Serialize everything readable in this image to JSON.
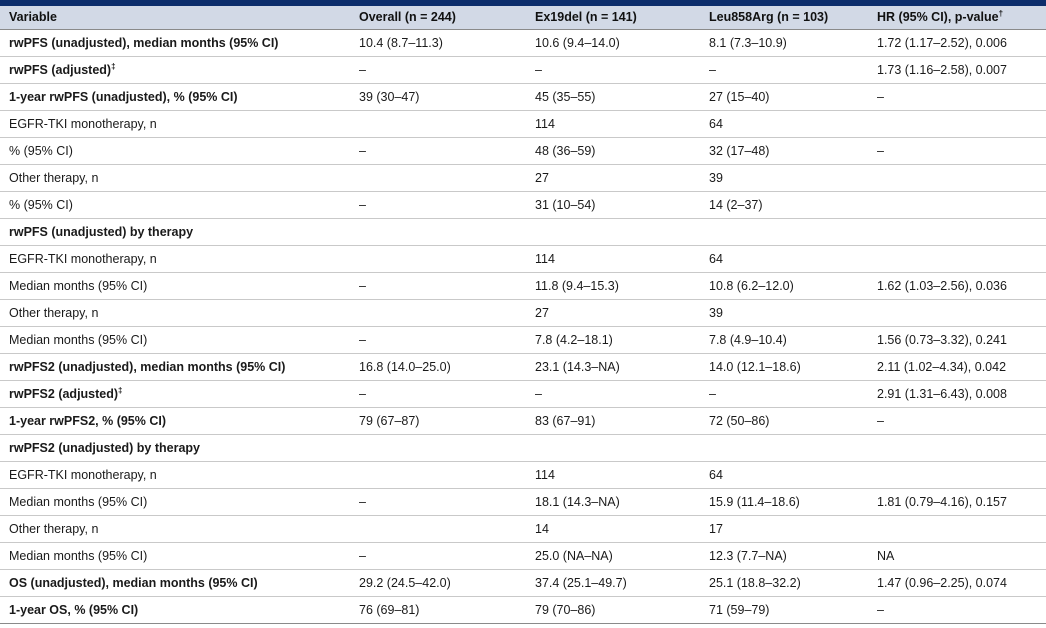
{
  "table": {
    "headers": [
      "Variable",
      "Overall (n = 244)",
      "Ex19del (n = 141)",
      "Leu858Arg (n = 103)",
      "HR (95% CI), p-value"
    ],
    "header_sup": "†",
    "rows": [
      {
        "bold": true,
        "label": "rwPFS (unadjusted), median months (95% CI)",
        "sup": "",
        "cells": [
          "10.4 (8.7–11.3)",
          "10.6 (9.4–14.0)",
          "8.1 (7.3–10.9)",
          "1.72 (1.17–2.52), 0.006"
        ]
      },
      {
        "bold": true,
        "label": "rwPFS (adjusted)",
        "sup": "‡",
        "cells": [
          "–",
          "–",
          "–",
          "1.73 (1.16–2.58), 0.007"
        ]
      },
      {
        "bold": true,
        "label": "1-year rwPFS (unadjusted), % (95% CI)",
        "sup": "",
        "cells": [
          "39 (30–47)",
          "45 (35–55)",
          "27 (15–40)",
          "–"
        ]
      },
      {
        "bold": false,
        "label": "EGFR-TKI monotherapy, n",
        "sup": "",
        "cells": [
          "",
          "114",
          "64",
          ""
        ]
      },
      {
        "bold": false,
        "label": "% (95% CI)",
        "sup": "",
        "cells": [
          "–",
          "48 (36–59)",
          "32 (17–48)",
          "–"
        ]
      },
      {
        "bold": false,
        "label": "Other therapy, n",
        "sup": "",
        "cells": [
          "",
          "27",
          "39",
          ""
        ]
      },
      {
        "bold": false,
        "label": "% (95% CI)",
        "sup": "",
        "cells": [
          "–",
          "31 (10–54)",
          "14 (2–37)",
          ""
        ]
      },
      {
        "bold": true,
        "label": "rwPFS (unadjusted) by therapy",
        "sup": "",
        "cells": [
          "",
          "",
          "",
          ""
        ]
      },
      {
        "bold": false,
        "label": "EGFR-TKI monotherapy, n",
        "sup": "",
        "cells": [
          "",
          "114",
          "64",
          ""
        ]
      },
      {
        "bold": false,
        "label": "Median months (95% CI)",
        "sup": "",
        "cells": [
          "–",
          "11.8 (9.4–15.3)",
          "10.8 (6.2–12.0)",
          "1.62 (1.03–2.56), 0.036"
        ]
      },
      {
        "bold": false,
        "label": "Other therapy, n",
        "sup": "",
        "cells": [
          "",
          "27",
          "39",
          ""
        ]
      },
      {
        "bold": false,
        "label": "Median months (95% CI)",
        "sup": "",
        "cells": [
          "–",
          "7.8 (4.2–18.1)",
          "7.8 (4.9–10.4)",
          "1.56 (0.73–3.32), 0.241"
        ]
      },
      {
        "bold": true,
        "label": "rwPFS2 (unadjusted), median months (95% CI)",
        "sup": "",
        "cells": [
          "16.8 (14.0–25.0)",
          "23.1 (14.3–NA)",
          "14.0 (12.1–18.6)",
          "2.11 (1.02–4.34), 0.042"
        ]
      },
      {
        "bold": true,
        "label": "rwPFS2 (adjusted)",
        "sup": "‡",
        "cells": [
          "–",
          "–",
          "–",
          "2.91 (1.31–6.43), 0.008"
        ]
      },
      {
        "bold": true,
        "label": "1-year rwPFS2, % (95% CI)",
        "sup": "",
        "cells": [
          "79 (67–87)",
          "83 (67–91)",
          "72 (50–86)",
          "–"
        ]
      },
      {
        "bold": true,
        "label": "rwPFS2 (unadjusted) by therapy",
        "sup": "",
        "cells": [
          "",
          "",
          "",
          ""
        ]
      },
      {
        "bold": false,
        "label": "EGFR-TKI monotherapy, n",
        "sup": "",
        "cells": [
          "",
          "114",
          "64",
          ""
        ]
      },
      {
        "bold": false,
        "label": "Median months (95% CI)",
        "sup": "",
        "cells": [
          "–",
          "18.1 (14.3–NA)",
          "15.9 (11.4–18.6)",
          "1.81 (0.79–4.16), 0.157"
        ]
      },
      {
        "bold": false,
        "label": "Other therapy, n",
        "sup": "",
        "cells": [
          "",
          "14",
          "17",
          ""
        ]
      },
      {
        "bold": false,
        "label": "Median months (95% CI)",
        "sup": "",
        "cells": [
          "–",
          "25.0 (NA–NA)",
          "12.3 (7.7–NA)",
          "NA"
        ]
      },
      {
        "bold": true,
        "label": "OS (unadjusted), median months (95% CI)",
        "sup": "",
        "cells": [
          "29.2 (24.5–42.0)",
          "37.4 (25.1–49.7)",
          "25.1 (18.8–32.2)",
          "1.47 (0.96–2.25), 0.074"
        ]
      },
      {
        "bold": true,
        "label": "1-year OS, % (95% CI)",
        "sup": "",
        "cells": [
          "76 (69–81)",
          "79 (70–86)",
          "71 (59–79)",
          "–"
        ]
      }
    ]
  }
}
